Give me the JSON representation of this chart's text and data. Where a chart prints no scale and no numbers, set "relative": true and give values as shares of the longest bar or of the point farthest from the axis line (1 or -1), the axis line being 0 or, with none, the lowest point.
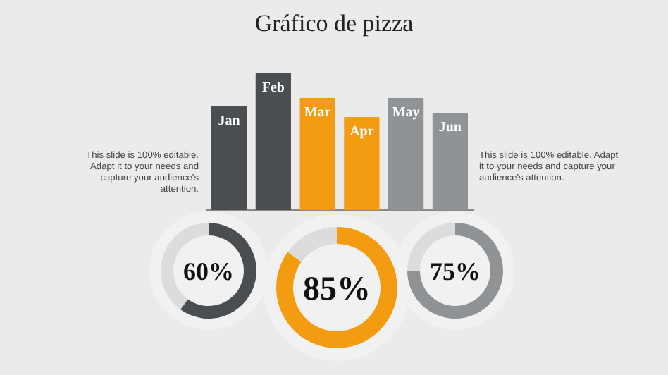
{
  "chart_data": [
    {
      "type": "bar",
      "title": "Gráfico de pizza",
      "relative": true,
      "categories": [
        "Jan",
        "Feb",
        "Mar",
        "Apr",
        "May",
        "Jun"
      ],
      "values": [
        0.76,
        1,
        0.82,
        0.68,
        0.82,
        0.71
      ],
      "colors": [
        "#4b4e51",
        "#4b4e51",
        "#f39c12",
        "#f39c12",
        "#909396",
        "#909396"
      ],
      "annotations": [
        "This slide is 100% editable. Adapt it to your needs and capture your audience's attention.",
        "This slide is 100% editable. Adapt it to your needs and capture your audience's attention."
      ]
    },
    {
      "type": "donut",
      "categories": [
        null,
        null
      ],
      "values": [
        60,
        40
      ],
      "colors": [
        "#4b4e51",
        "#dcdcdc"
      ],
      "value_labels": [
        "60%",
        null
      ]
    },
    {
      "type": "donut",
      "categories": [
        null,
        null
      ],
      "values": [
        85,
        15
      ],
      "colors": [
        "#f39c12",
        "#dcdcdc"
      ],
      "value_labels": [
        "85%",
        null
      ]
    },
    {
      "type": "donut",
      "categories": [
        null,
        null
      ],
      "values": [
        75,
        25
      ],
      "colors": [
        "#909396",
        "#dcdcdc"
      ],
      "value_labels": [
        "75%",
        null
      ]
    }
  ]
}
